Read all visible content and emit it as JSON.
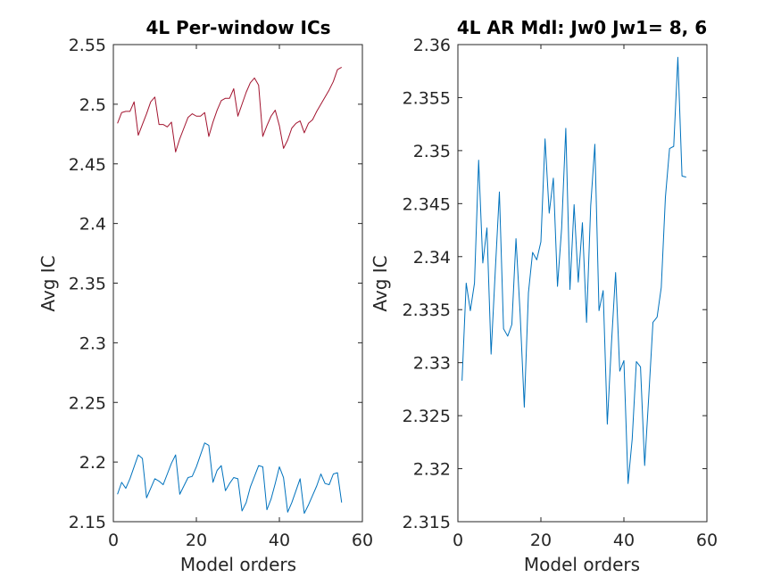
{
  "chart_data": [
    {
      "type": "line",
      "title": "4L Per-window ICs",
      "xlabel": "Model orders",
      "ylabel": "Avg IC",
      "xlim": [
        0,
        60
      ],
      "ylim": [
        2.15,
        2.55
      ],
      "xticks": [
        0,
        20,
        40,
        60
      ],
      "xtick_labels": [
        "0",
        "20",
        "40",
        "60"
      ],
      "yticks": [
        2.15,
        2.2,
        2.25,
        2.3,
        2.35,
        2.4,
        2.45,
        2.5,
        2.55
      ],
      "ytick_labels": [
        "2.15",
        "2.2",
        "2.25",
        "2.3",
        "2.35",
        "2.4",
        "2.45",
        "2.5",
        "2.55"
      ],
      "grid": false,
      "series": [
        {
          "color": "#a2142f",
          "x": [
            1,
            2,
            3,
            4,
            5,
            6,
            7,
            8,
            9,
            10,
            11,
            12,
            13,
            14,
            15,
            16,
            17,
            18,
            19,
            20,
            21,
            22,
            23,
            24,
            25,
            26,
            27,
            28,
            29,
            30,
            31,
            32,
            33,
            34,
            35,
            36,
            37,
            38,
            39,
            40,
            41,
            42,
            43,
            44,
            45,
            46,
            47,
            48,
            49,
            50,
            51,
            52,
            53,
            54,
            55
          ],
          "y": [
            2.484,
            2.493,
            2.494,
            2.494,
            2.502,
            2.474,
            2.483,
            2.492,
            2.502,
            2.506,
            2.483,
            2.483,
            2.481,
            2.485,
            2.46,
            2.471,
            2.48,
            2.489,
            2.492,
            2.49,
            2.49,
            2.493,
            2.473,
            2.485,
            2.495,
            2.503,
            2.505,
            2.505,
            2.513,
            2.49,
            2.5,
            2.51,
            2.518,
            2.522,
            2.516,
            2.473,
            2.482,
            2.49,
            2.495,
            2.482,
            2.463,
            2.47,
            2.48,
            2.484,
            2.486,
            2.476,
            2.484,
            2.487,
            2.494,
            2.5,
            2.506,
            2.512,
            2.519,
            2.529,
            2.531
          ]
        },
        {
          "color": "#0072bd",
          "x": [
            1,
            2,
            3,
            4,
            5,
            6,
            7,
            8,
            9,
            10,
            11,
            12,
            13,
            14,
            15,
            16,
            17,
            18,
            19,
            20,
            21,
            22,
            23,
            24,
            25,
            26,
            27,
            28,
            29,
            30,
            31,
            32,
            33,
            34,
            35,
            36,
            37,
            38,
            39,
            40,
            41,
            42,
            43,
            44,
            45,
            46,
            47,
            48,
            49,
            50,
            51,
            52,
            53,
            54,
            55
          ],
          "y": [
            2.173,
            2.183,
            2.178,
            2.186,
            2.196,
            2.206,
            2.203,
            2.17,
            2.178,
            2.186,
            2.184,
            2.181,
            2.19,
            2.199,
            2.206,
            2.173,
            2.18,
            2.187,
            2.188,
            2.196,
            2.206,
            2.216,
            2.214,
            2.183,
            2.193,
            2.197,
            2.176,
            2.182,
            2.187,
            2.186,
            2.159,
            2.166,
            2.179,
            2.188,
            2.197,
            2.196,
            2.16,
            2.169,
            2.182,
            2.196,
            2.187,
            2.158,
            2.166,
            2.176,
            2.186,
            2.157,
            2.164,
            2.172,
            2.18,
            2.19,
            2.182,
            2.181,
            2.19,
            2.191,
            2.166
          ]
        }
      ]
    },
    {
      "type": "line",
      "title": "4L AR Mdl: Jw0 Jw1= 8, 6",
      "xlabel": "Model orders",
      "ylabel": "Avg IC",
      "xlim": [
        0,
        60
      ],
      "ylim": [
        2.315,
        2.36
      ],
      "xticks": [
        0,
        20,
        40,
        60
      ],
      "xtick_labels": [
        "0",
        "20",
        "40",
        "60"
      ],
      "yticks": [
        2.315,
        2.32,
        2.325,
        2.33,
        2.335,
        2.34,
        2.345,
        2.35,
        2.355,
        2.36
      ],
      "ytick_labels": [
        "2.315",
        "2.32",
        "2.325",
        "2.33",
        "2.335",
        "2.34",
        "2.345",
        "2.35",
        "2.355",
        "2.36"
      ],
      "grid": false,
      "series": [
        {
          "color": "#0072bd",
          "x": [
            1,
            2,
            3,
            4,
            5,
            6,
            7,
            8,
            9,
            10,
            11,
            12,
            13,
            14,
            15,
            16,
            17,
            18,
            19,
            20,
            21,
            22,
            23,
            24,
            25,
            26,
            27,
            28,
            29,
            30,
            31,
            32,
            33,
            34,
            35,
            36,
            37,
            38,
            39,
            40,
            41,
            42,
            43,
            44,
            45,
            46,
            47,
            48,
            49,
            50,
            51,
            52,
            53,
            54,
            55
          ],
          "y": [
            2.3283,
            2.3375,
            2.3349,
            2.3375,
            2.3491,
            2.3394,
            2.3427,
            2.3308,
            2.3386,
            2.3461,
            2.3332,
            2.3325,
            2.3336,
            2.3417,
            2.3346,
            2.3258,
            2.3366,
            2.3404,
            2.3397,
            2.3414,
            2.3511,
            2.3441,
            2.3474,
            2.3372,
            2.3427,
            2.3521,
            2.3369,
            2.3449,
            2.3376,
            2.3432,
            2.3338,
            2.3448,
            2.3506,
            2.3349,
            2.3368,
            2.3242,
            2.3318,
            2.3385,
            2.3292,
            2.3302,
            2.3186,
            2.3228,
            2.3301,
            2.3296,
            2.3203,
            2.3269,
            2.3338,
            2.3343,
            2.3371,
            2.3456,
            2.3502,
            2.3504,
            2.3588,
            2.3476,
            2.3475
          ]
        }
      ]
    }
  ]
}
